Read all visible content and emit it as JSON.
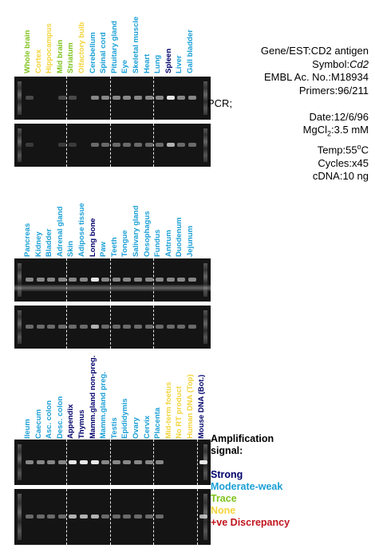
{
  "colors": {
    "strong": "#00006b",
    "moderate": "#1a9fd6",
    "trace": "#7fc31c",
    "none": "#f2d43c",
    "discrepancy": "#c0141d"
  },
  "panels": [
    {
      "lanes": [
        {
          "label": "Whole brain",
          "level": "trace"
        },
        {
          "label": "Cortex",
          "level": "none"
        },
        {
          "label": "Hippocampus",
          "level": "none"
        },
        {
          "label": "Mid brain",
          "level": "trace"
        },
        {
          "label": "Striatum",
          "level": "trace"
        },
        {
          "label": "Olfactory bulb",
          "level": "none"
        },
        {
          "label": "Cerebellum",
          "level": "moderate"
        },
        {
          "label": "Spinal cord",
          "level": "moderate"
        },
        {
          "label": "Pituitary gland",
          "level": "moderate"
        },
        {
          "label": "Eye",
          "level": "moderate"
        },
        {
          "label": "Skeletal muscle",
          "level": "moderate"
        },
        {
          "label": "Heart",
          "level": "moderate"
        },
        {
          "label": "Lung",
          "level": "moderate"
        },
        {
          "label": "Spleen",
          "level": "strong"
        },
        {
          "label": "Liver",
          "level": "moderate"
        },
        {
          "label": "Gall bladder",
          "level": "moderate"
        }
      ]
    },
    {
      "lanes": [
        {
          "label": "Pancreas",
          "level": "moderate"
        },
        {
          "label": "Kidney",
          "level": "moderate"
        },
        {
          "label": "Bladder",
          "level": "moderate"
        },
        {
          "label": "Adrenal gland",
          "level": "moderate"
        },
        {
          "label": "Skin",
          "level": "moderate"
        },
        {
          "label": "Adipose tissue",
          "level": "moderate"
        },
        {
          "label": "Long bone",
          "level": "strong"
        },
        {
          "label": "Paw",
          "level": "moderate"
        },
        {
          "label": "Teeth",
          "level": "moderate"
        },
        {
          "label": "Tongue",
          "level": "moderate"
        },
        {
          "label": "Salivary gland",
          "level": "moderate"
        },
        {
          "label": "Oesophagus",
          "level": "moderate"
        },
        {
          "label": "Fundus",
          "level": "moderate"
        },
        {
          "label": "Antrum",
          "level": "moderate"
        },
        {
          "label": "Duodenum",
          "level": "moderate"
        },
        {
          "label": "Jejunum",
          "level": "moderate"
        }
      ]
    },
    {
      "lanes": [
        {
          "label": "Ileum",
          "level": "moderate"
        },
        {
          "label": "Caecum",
          "level": "moderate"
        },
        {
          "label": "Asc. colon",
          "level": "moderate"
        },
        {
          "label": "Desc. colon",
          "level": "moderate"
        },
        {
          "label": "Appendix",
          "level": "strong"
        },
        {
          "label": "Thymus",
          "level": "strong"
        },
        {
          "label": "Mamm.gland non-preg.",
          "level": "strong"
        },
        {
          "label": "Mamm.gland preg.",
          "level": "moderate"
        },
        {
          "label": "Testis",
          "level": "moderate"
        },
        {
          "label": "Epididymis",
          "level": "moderate"
        },
        {
          "label": "Ovary",
          "level": "moderate"
        },
        {
          "label": "Cervix",
          "level": "moderate"
        },
        {
          "label": "Placenta",
          "level": "moderate"
        },
        {
          "label": "Mid-term foetus",
          "level": "none"
        },
        {
          "label": "No RT product",
          "level": "none"
        },
        {
          "label": "Human DNA (Top)",
          "level": "none"
        },
        {
          "label": "Mouse DNA (Bot.)",
          "level": "strong"
        }
      ]
    }
  ],
  "info": {
    "gene_est": "Gene/EST:CD2 antigen",
    "symbol_label": "Symbol:",
    "symbol_value": "Cd2",
    "embl": "EMBL Ac. No.:M18934",
    "primers": "Primers:96/211",
    "pcr": "PCR;",
    "date": "Date:12/6/96",
    "mgcl_label": "MgCl",
    "mgcl_sub": "2",
    "mgcl_value": ":3.5 mM",
    "temp_label": "Temp:55",
    "temp_sup": "o",
    "temp_unit": "C",
    "cycles": "Cycles:x45",
    "cdna": "cDNA:10 ng"
  },
  "legend": {
    "title_line1": "Amplification",
    "title_line2": "signal:",
    "strong": "Strong",
    "moderate": "Moderate-weak",
    "trace": "Trace",
    "none": "None",
    "discrepancy": "+ve Discrepancy"
  }
}
